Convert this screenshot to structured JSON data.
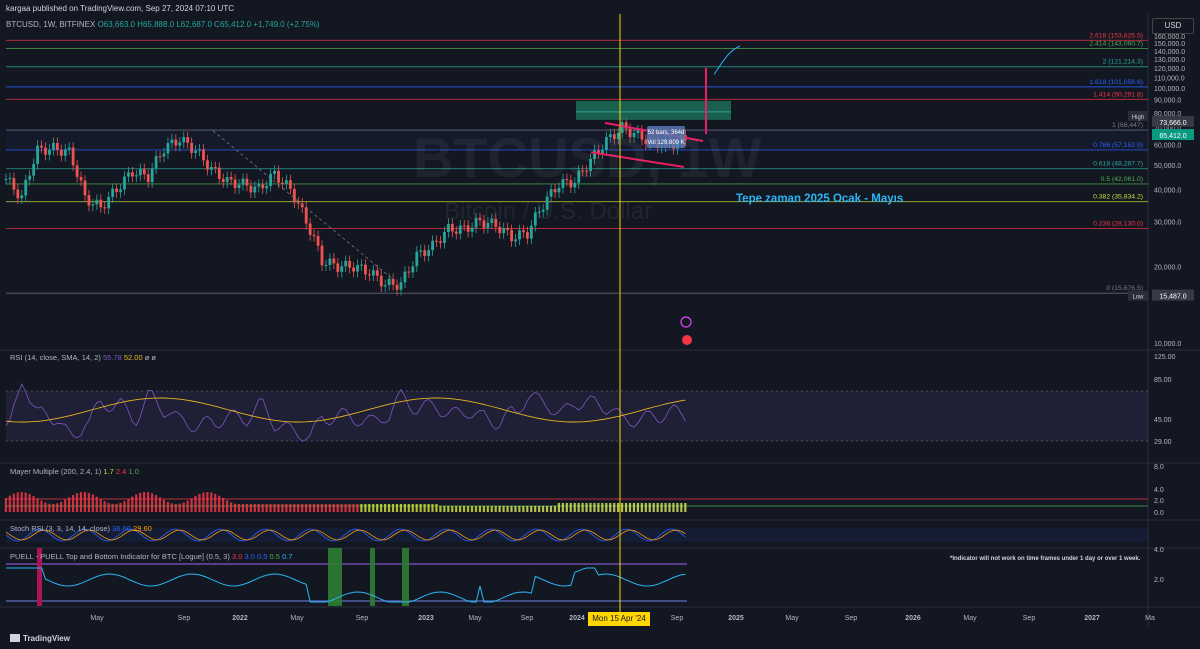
{
  "header": {
    "published": "kargaa published on TradingView.com, Sep 27, 2024 07:10 UTC"
  },
  "symbol_line": {
    "name": "BTCUSD, 1W, BITFINEX",
    "o": "O63,663.0",
    "h": "H65,888.0",
    "l": "L62,687.0",
    "c": "C65,412.0",
    "chg": "+1,749.0 (+2.75%)"
  },
  "currency_button": "USD",
  "watermark": {
    "title": "BTCUSD, 1W",
    "subtitle": "Bitcoin / U.S. Dollar"
  },
  "annotation": "Tepe zaman 2025 Ocak  - Mayıs",
  "box_labels": {
    "bars": "52 bars, 364d",
    "vol": "Vol 129.809 K"
  },
  "indicators": {
    "rsi": {
      "label": "RSI (14, close, SMA, 14, 2)",
      "v1": "55.78",
      "v2": "52.00",
      "tail": "ø ø"
    },
    "mayer": {
      "label": "Mayer Multiple (200, 2.4, 1)",
      "v1": "1.7",
      "v2": "2.4",
      "v3": "1.0"
    },
    "stoch": {
      "label": "Stoch RSI (3, 3, 14, 14, close)",
      "v1": "36.60",
      "v2": "29.60"
    },
    "puell": {
      "label": "PUELL - PUELL Top and Bottom Indicator for BTC [Logue] (0.5, 3)",
      "vals": [
        "3.0",
        "3.0",
        "0.5",
        "0.5",
        "0.7"
      ]
    }
  },
  "puell_note": "*Indicator will not work on time frames under 1 day or over 1 week.",
  "date_label": "Mon 15 Apr '24",
  "footer_brand": "TradingView",
  "price_labels": {
    "high_tag": "High",
    "high_val": "73,666.0",
    "last_val": "65,412.0",
    "low_tag": "Low",
    "low_val": "15,487.0"
  },
  "colors": {
    "bg": "#131722",
    "up": "#26a69a",
    "down": "#ef5350",
    "rsi": "#7e57c2",
    "rsi_ma": "#e6b422",
    "fib_blue": "#2962ff",
    "fib_green": "#4caf50",
    "fib_red": "#f23645",
    "vline": "#ffd600",
    "annotation": "#29b6f6",
    "pink": "#e91e63"
  },
  "chart_data": {
    "type": "candlestick",
    "axes": {
      "price": {
        "ticks": [
          "160,000.0",
          "150,000.0",
          "140,000.0",
          "130,000.0",
          "120,000.0",
          "110,000.0",
          "100,000.0",
          "90,000.0",
          "80,000.0",
          "70,000.0",
          "60,000.0",
          "50,000.0",
          "40,000.0",
          "30,000.0",
          "20,000.0",
          "10,000.0"
        ],
        "range": [
          10000,
          160000
        ]
      },
      "rsi": {
        "ticks": [
          "125.00",
          "85.00",
          "45.00",
          "29.00"
        ]
      },
      "mayer": {
        "ticks": [
          "8.0",
          "4.0",
          "2.0",
          "0.0"
        ]
      },
      "puell": {
        "ticks": [
          "4.0",
          "2.0"
        ]
      },
      "time": [
        "May",
        "Sep",
        "2022",
        "May",
        "Sep",
        "2023",
        "May",
        "Sep",
        "2024",
        "May",
        "Sep",
        "2025",
        "May",
        "Sep",
        "2026",
        "May",
        "Sep",
        "2027",
        "Ma"
      ]
    },
    "fib_levels": [
      {
        "ratio": "2.618",
        "value": "153,825.5",
        "price": 153825.5,
        "color": "#f23645"
      },
      {
        "ratio": "2.414",
        "value": "143,060.7",
        "price": 143060.7,
        "color": "#4caf50"
      },
      {
        "ratio": "2",
        "value": "121,214.3",
        "price": 121214.3,
        "color": "#26a69a"
      },
      {
        "ratio": "1.618",
        "value": "101,056.6",
        "price": 101056.6,
        "color": "#2962ff"
      },
      {
        "ratio": "1.414",
        "value": "90,291.8",
        "price": 90291.8,
        "color": "#f23645"
      },
      {
        "ratio": "1",
        "value": "68,447",
        "price": 68447,
        "color": "#787b86"
      },
      {
        "ratio": "0.786",
        "value": "57,152.9",
        "price": 57152.9,
        "color": "#2962ff"
      },
      {
        "ratio": "0.618",
        "value": "48,287.7",
        "price": 48287.7,
        "color": "#26a69a"
      },
      {
        "ratio": "0.5",
        "value": "42,061.0",
        "price": 42061.0,
        "color": "#4caf50"
      },
      {
        "ratio": "0.382",
        "value": "35,834.2",
        "price": 35834.2,
        "color": "#cddc39"
      },
      {
        "ratio": "0.236",
        "value": "28,130.0",
        "price": 28130.0,
        "color": "#f23645"
      },
      {
        "ratio": "0",
        "value": "15,676.5",
        "price": 15676.5,
        "color": "#787b86"
      }
    ],
    "weekly_close_approx": [
      [
        0,
        44000
      ],
      [
        4,
        37000
      ],
      [
        8,
        57000
      ],
      [
        12,
        58000
      ],
      [
        16,
        56000
      ],
      [
        20,
        37000
      ],
      [
        24,
        34000
      ],
      [
        28,
        40000
      ],
      [
        32,
        47000
      ],
      [
        36,
        45000
      ],
      [
        40,
        58000
      ],
      [
        44,
        63000
      ],
      [
        48,
        57000
      ],
      [
        52,
        48000
      ],
      [
        56,
        43000
      ],
      [
        60,
        42000
      ],
      [
        64,
        40000
      ],
      [
        68,
        46000
      ],
      [
        72,
        40000
      ],
      [
        76,
        30000
      ],
      [
        80,
        21000
      ],
      [
        84,
        20000
      ],
      [
        88,
        20000
      ],
      [
        92,
        19000
      ],
      [
        96,
        17000
      ],
      [
        100,
        17000
      ],
      [
        104,
        22000
      ],
      [
        108,
        24000
      ],
      [
        112,
        28000
      ],
      [
        116,
        28000
      ],
      [
        120,
        30000
      ],
      [
        124,
        29000
      ],
      [
        128,
        26000
      ],
      [
        132,
        27000
      ],
      [
        136,
        35000
      ],
      [
        140,
        42000
      ],
      [
        144,
        43000
      ],
      [
        148,
        52000
      ],
      [
        152,
        62000
      ],
      [
        156,
        70000
      ],
      [
        160,
        65000
      ],
      [
        164,
        61000
      ],
      [
        168,
        60000
      ],
      [
        172,
        63000
      ]
    ]
  }
}
